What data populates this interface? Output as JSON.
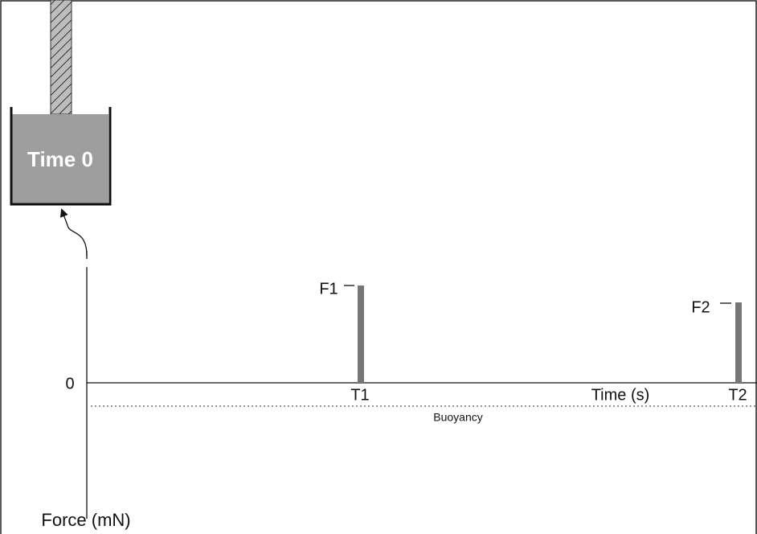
{
  "container": {
    "label": "Time 0"
  },
  "axes": {
    "zero_label": "0",
    "x_label": "Time (s)",
    "y_label": "Force (mN)",
    "baseline_label": "Buoyancy"
  },
  "peaks": [
    {
      "force_label": "F1",
      "time_label": "T1"
    },
    {
      "force_label": "F2",
      "time_label": "T2"
    }
  ]
}
